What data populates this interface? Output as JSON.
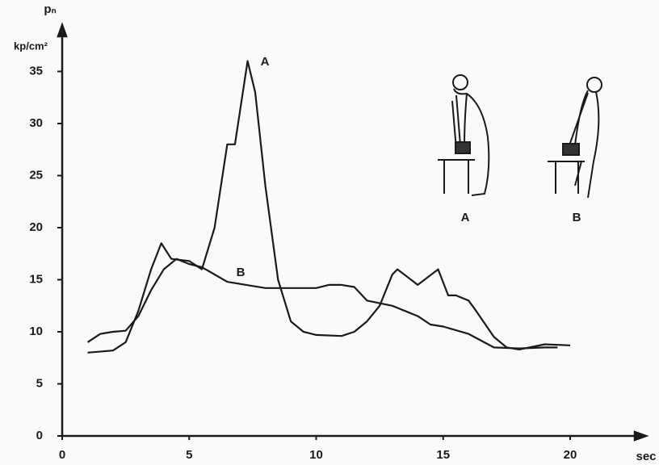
{
  "chart_data": {
    "type": "line",
    "y_label_symbol": "pₙ",
    "y_label_unit": "kp/cm²",
    "x_label": "sec",
    "series": [
      {
        "name": "A",
        "color": "#1a1a1a",
        "x": [
          1,
          2,
          2.5,
          3,
          3.5,
          3.9,
          4.3,
          5,
          5.5,
          6,
          6.5,
          6.8,
          7.3,
          7.6,
          8,
          8.5,
          9,
          9.5,
          10,
          11,
          11.5,
          12,
          12.5,
          13,
          13.2,
          14,
          14.8,
          15.2,
          15.5,
          16,
          16.3,
          17,
          17.5,
          18,
          19,
          20
        ],
        "values": [
          8,
          8.2,
          9,
          12,
          16,
          18.5,
          17,
          16.8,
          16,
          20,
          28,
          28,
          36,
          33,
          24,
          15,
          11,
          10,
          9.7,
          9.6,
          10,
          11,
          12.5,
          15.5,
          16,
          14.5,
          16,
          13.5,
          13.5,
          13,
          12,
          9.5,
          8.5,
          8.3,
          8.8,
          8.7
        ]
      },
      {
        "name": "B",
        "color": "#1a1a1a",
        "x": [
          1,
          1.5,
          2,
          2.5,
          3,
          3.5,
          4,
          4.5,
          5,
          5.5,
          6,
          6.5,
          7,
          8,
          9,
          10,
          10.5,
          11,
          11.5,
          12,
          13,
          13.5,
          14,
          14.5,
          15,
          16,
          17,
          18,
          19,
          19.5
        ],
        "values": [
          9,
          9.8,
          10,
          10.1,
          11.5,
          14,
          16,
          17,
          16.5,
          16.2,
          15.5,
          14.8,
          14.6,
          14.2,
          14.2,
          14.2,
          14.5,
          14.5,
          14.3,
          13,
          12.5,
          12,
          11.5,
          10.7,
          10.5,
          9.8,
          8.5,
          8.4,
          8.5,
          8.5
        ]
      }
    ],
    "figure_labels": [
      "A",
      "B"
    ],
    "xlim": [
      0,
      22.7
    ],
    "ylim": [
      0,
      38.6
    ],
    "xticks": [
      0,
      5,
      10,
      15,
      20
    ],
    "yticks": [
      0,
      5,
      10,
      15,
      20,
      25,
      30,
      35
    ],
    "grid": false
  }
}
